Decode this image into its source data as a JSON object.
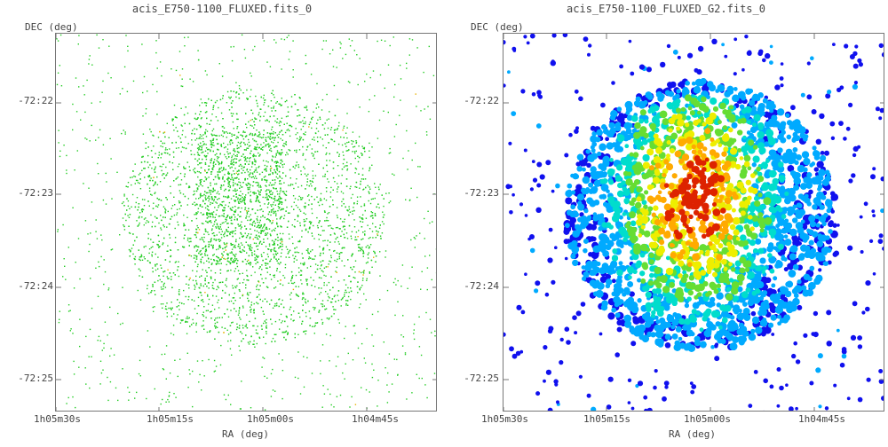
{
  "panels": [
    {
      "title": "acis_E750-1100_FLUXED.fits_0",
      "dec_label": "DEC (deg)",
      "ra_label": "RA (deg)",
      "y_ticks": [
        "-72:22",
        "-72:23",
        "-72:24",
        "-72:25"
      ],
      "x_ticks": [
        "1h05m30s",
        "1h05m15s",
        "1h05m00s",
        "1h04m45s"
      ],
      "colors": {
        "events": "#22cc22",
        "bright": "#e8b000"
      }
    },
    {
      "title": "acis_E750-1100_FLUXED_G2.fits_0",
      "dec_label": "DEC (deg)",
      "ra_label": "RA (deg)",
      "y_ticks": [
        "-72:22",
        "-72:23",
        "-72:24",
        "-72:25"
      ],
      "x_ticks": [
        "1h05m30s",
        "1h05m15s",
        "1h05m00s",
        "1h04m45s"
      ],
      "colormap": [
        "#1010ee",
        "#00aaff",
        "#00ddcc",
        "#66dd33",
        "#eeee00",
        "#ffaa00",
        "#dd2200"
      ]
    }
  ]
}
